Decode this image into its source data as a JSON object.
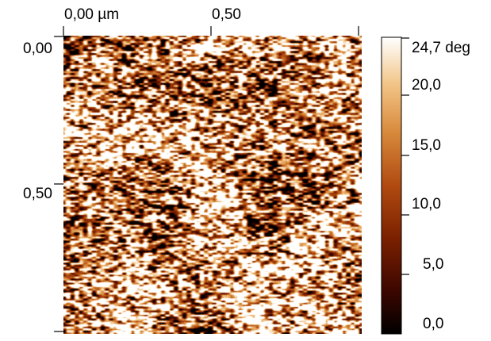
{
  "axes": {
    "x_tick_labels": [
      "0,00 µm",
      "0,50"
    ],
    "y_tick_labels": [
      "0,00",
      "0,50"
    ]
  },
  "colorbar": {
    "tick_labels": [
      "24,7 deg",
      "20,0",
      "15,0",
      "10,0",
      "5,0",
      "0,0"
    ],
    "min_value": 0.0,
    "max_value": 24.7,
    "unit_label_in_top_tick": true,
    "colormap": [
      "#000000",
      "#3a0600",
      "#7a2000",
      "#b04a10",
      "#d88a3c",
      "#f2c486",
      "#ffffff"
    ]
  },
  "image": {
    "icon": "afm-phase-image-texture"
  }
}
